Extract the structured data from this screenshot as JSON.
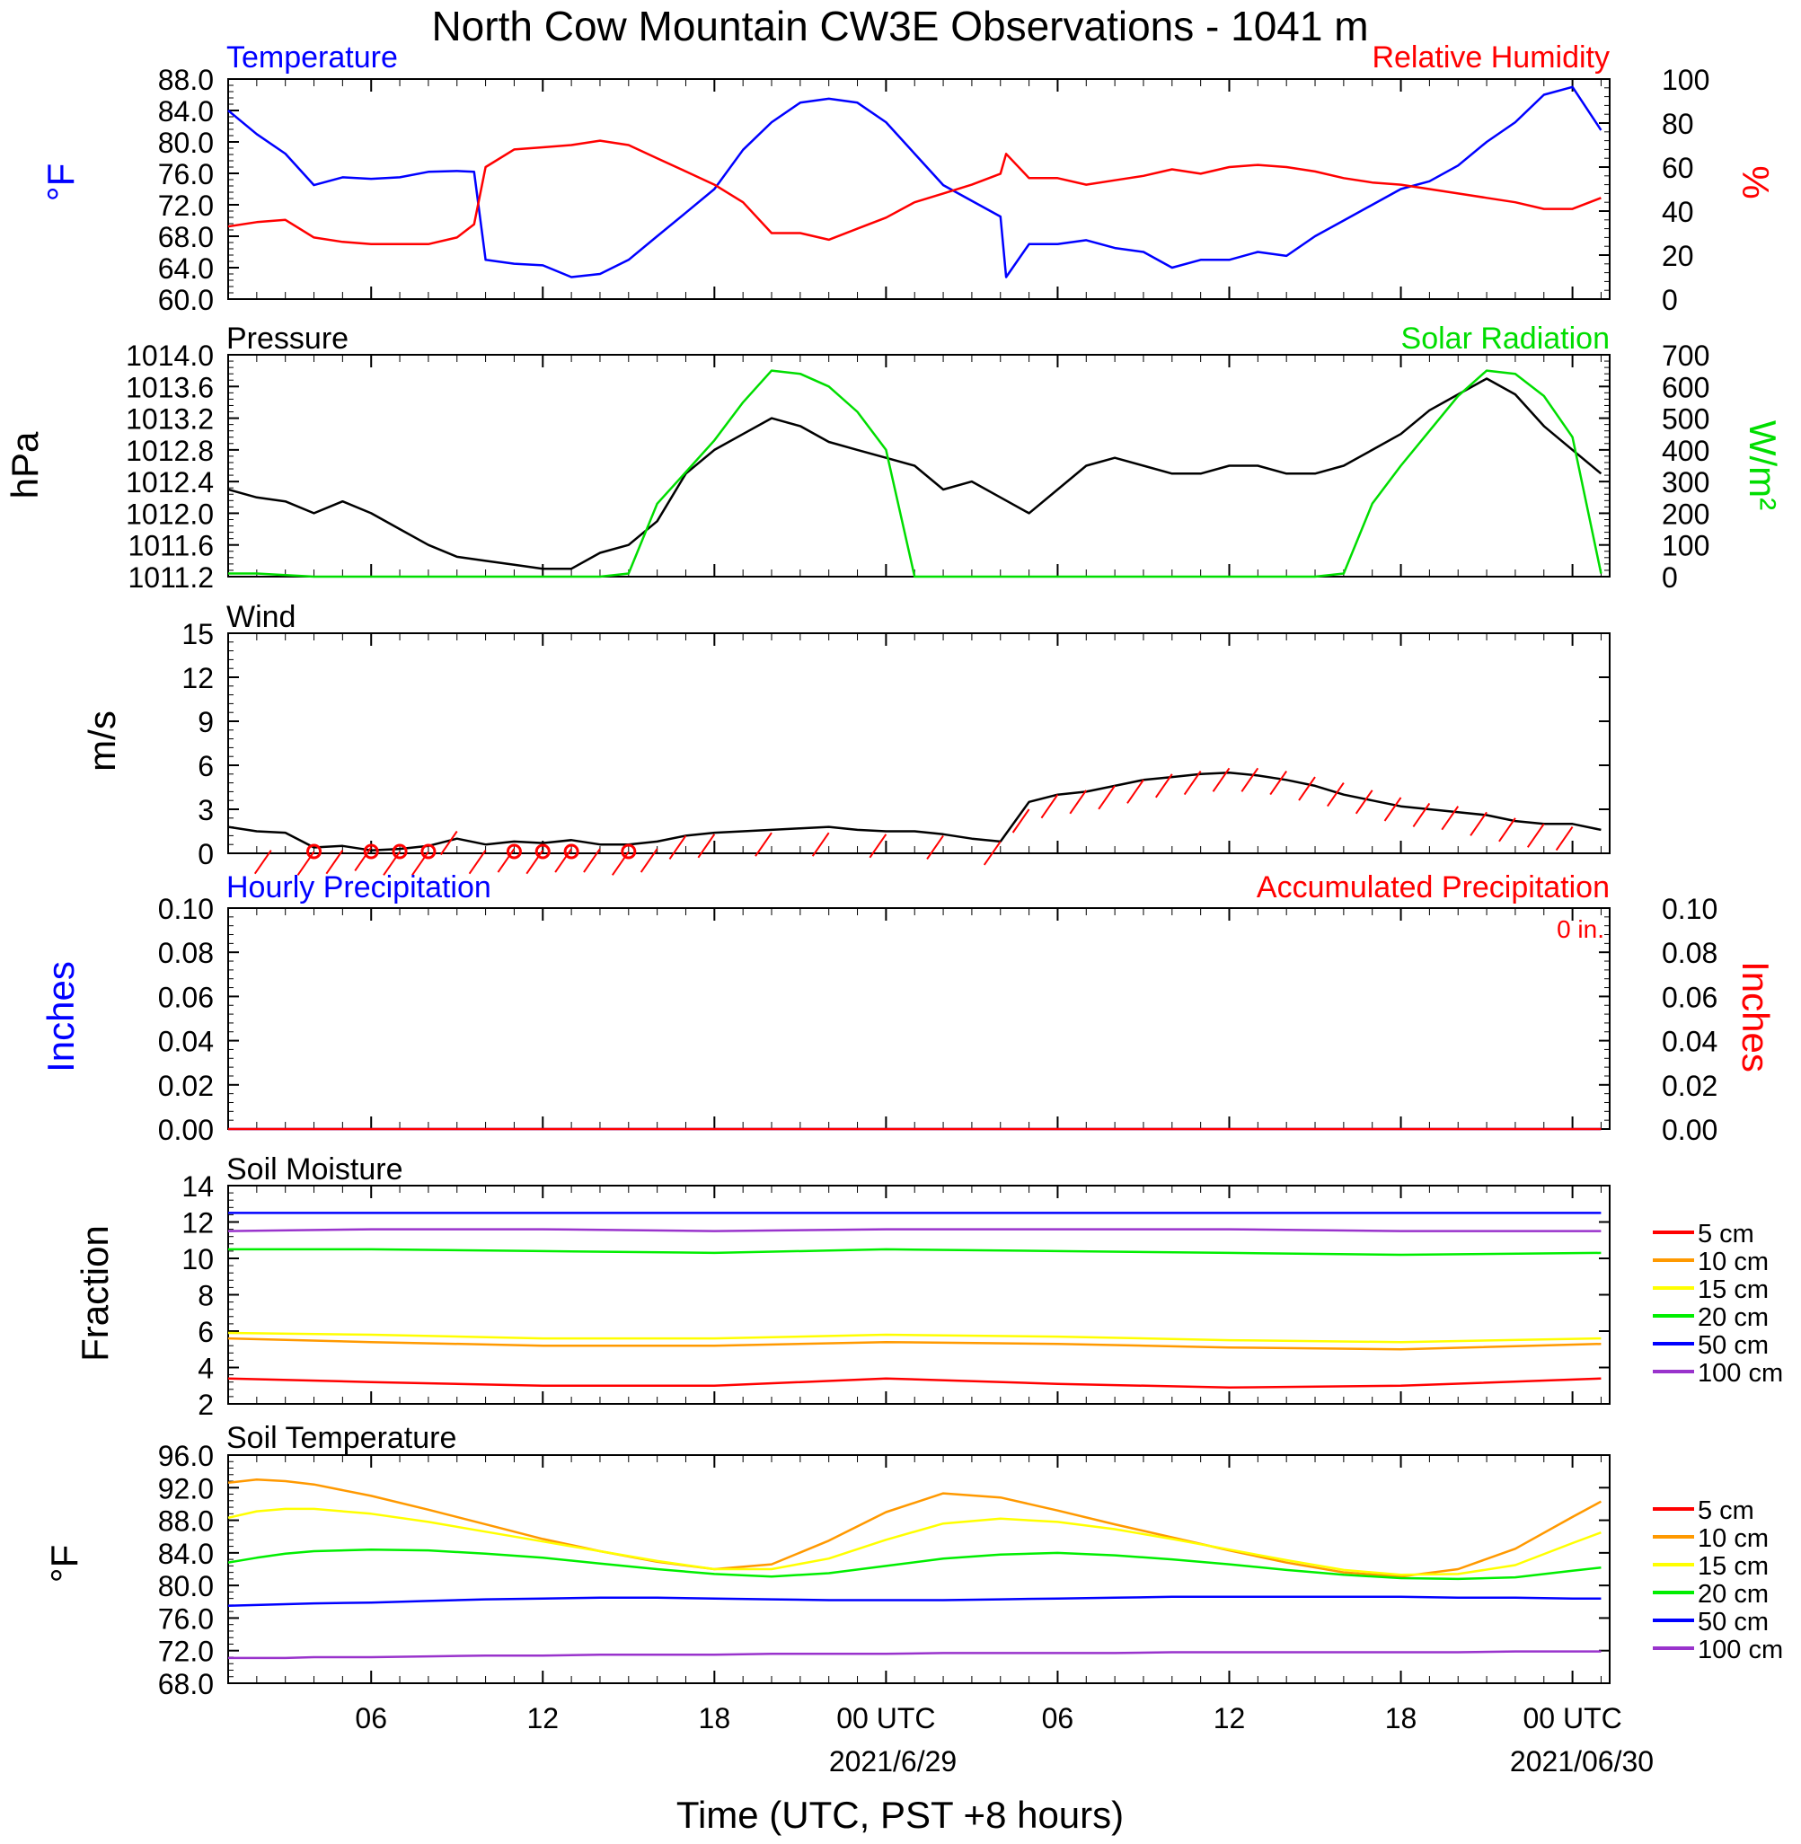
{
  "title": "North Cow Mountain CW3E Observations - 1041 m",
  "xlabel": "Time (UTC, PST +8 hours)",
  "x_ticks": [
    "06",
    "12",
    "18",
    "00 UTC",
    "06",
    "12",
    "18",
    "00 UTC"
  ],
  "x_dates": [
    "2021/6/29",
    "2021/06/30"
  ],
  "chart_data": [
    {
      "type": "line",
      "title_left": "Temperature",
      "title_right": "Relative Humidity",
      "ylabel_left": "°F",
      "ylabel_right": "%",
      "ylim_left": [
        60,
        88
      ],
      "ylim_right": [
        0,
        100
      ],
      "yticks_left": [
        "60.0",
        "64.0",
        "68.0",
        "72.0",
        "76.0",
        "80.0",
        "84.0",
        "88.0"
      ],
      "yticks_right": [
        "0",
        "20",
        "40",
        "60",
        "80",
        "100"
      ],
      "x_hours": [
        1,
        2,
        3,
        4,
        5,
        6,
        7,
        8,
        9,
        9.6,
        10,
        11,
        12,
        13,
        14,
        15,
        16,
        17,
        18,
        19,
        20,
        21,
        22,
        23,
        24,
        25,
        26,
        27,
        28,
        28.2,
        29,
        30,
        31,
        32,
        33,
        34,
        35,
        36,
        37,
        38,
        39,
        40,
        41,
        42,
        43,
        44,
        45,
        46,
        47,
        48,
        49
      ],
      "series": [
        {
          "name": "Temperature",
          "color": "#0000ff",
          "axis": "left",
          "values": [
            84,
            81,
            78.5,
            74.5,
            75.5,
            75.3,
            75.5,
            76.2,
            76.3,
            76.2,
            65,
            64.5,
            64.3,
            62.8,
            63.2,
            65,
            68,
            71,
            74,
            79,
            82.5,
            85,
            85.5,
            85,
            82.5,
            78.5,
            74.5,
            72.5,
            70.5,
            62.8,
            67,
            67,
            67.5,
            66.5,
            66,
            64,
            65,
            65,
            66,
            65.5,
            68,
            70,
            72,
            74,
            75,
            77,
            80,
            82.5,
            86,
            87,
            81.5
          ]
        },
        {
          "name": "Relative Humidity",
          "color": "#ff0000",
          "axis": "right",
          "values": [
            33,
            35,
            36,
            28,
            26,
            25,
            25,
            25,
            28,
            34,
            60,
            68,
            69,
            70,
            72,
            70,
            64,
            58,
            52,
            44,
            30,
            30,
            27,
            32,
            37,
            44,
            48,
            52,
            57,
            66,
            55,
            55,
            52,
            54,
            56,
            59,
            57,
            60,
            61,
            60,
            58,
            55,
            53,
            52,
            50,
            48,
            46,
            44,
            41,
            41,
            46
          ]
        }
      ]
    },
    {
      "type": "line",
      "title_left": "Pressure",
      "title_right": "Solar Radiation",
      "ylabel_left": "hPa",
      "ylabel_right": "W/m²",
      "ylim_left": [
        1011.2,
        1014.0
      ],
      "ylim_right": [
        0,
        700
      ],
      "yticks_left": [
        "1011.2",
        "1011.6",
        "1012.0",
        "1012.4",
        "1012.8",
        "1013.2",
        "1013.6",
        "1014.0"
      ],
      "yticks_right": [
        "0",
        "100",
        "200",
        "300",
        "400",
        "500",
        "600",
        "700"
      ],
      "x_hours": [
        1,
        2,
        3,
        4,
        5,
        6,
        7,
        8,
        9,
        10,
        11,
        12,
        13,
        14,
        15,
        16,
        17,
        18,
        19,
        20,
        21,
        22,
        23,
        24,
        25,
        26,
        27,
        28,
        29,
        30,
        31,
        32,
        33,
        34,
        35,
        36,
        37,
        38,
        39,
        40,
        41,
        42,
        43,
        44,
        45,
        46,
        47,
        48,
        49
      ],
      "series": [
        {
          "name": "Pressure",
          "color": "#000000",
          "axis": "left",
          "values": [
            1012.3,
            1012.2,
            1012.15,
            1012.0,
            1012.15,
            1012.0,
            1011.8,
            1011.6,
            1011.45,
            1011.4,
            1011.35,
            1011.3,
            1011.3,
            1011.5,
            1011.6,
            1011.9,
            1012.5,
            1012.8,
            1013.0,
            1013.2,
            1013.1,
            1012.9,
            1012.8,
            1012.7,
            1012.6,
            1012.3,
            1012.4,
            1012.2,
            1012.0,
            1012.3,
            1012.6,
            1012.7,
            1012.6,
            1012.5,
            1012.5,
            1012.6,
            1012.6,
            1012.5,
            1012.5,
            1012.6,
            1012.8,
            1013.0,
            1013.3,
            1013.5,
            1013.7,
            1013.5,
            1013.1,
            1012.8,
            1012.5
          ]
        },
        {
          "name": "Solar Radiation",
          "color": "#00dd00",
          "axis": "right",
          "values": [
            10,
            10,
            5,
            0,
            0,
            0,
            0,
            0,
            0,
            0,
            0,
            0,
            0,
            0,
            10,
            230,
            330,
            430,
            550,
            650,
            640,
            600,
            520,
            400,
            0,
            0,
            0,
            0,
            0,
            0,
            0,
            0,
            0,
            0,
            0,
            0,
            0,
            0,
            0,
            10,
            230,
            350,
            460,
            570,
            650,
            640,
            570,
            440,
            10
          ]
        }
      ]
    },
    {
      "type": "line",
      "title_left": "Wind",
      "ylabel_left": "m/s",
      "ylim_left": [
        0,
        15
      ],
      "yticks_left": [
        "0",
        "3",
        "6",
        "9",
        "12",
        "15"
      ],
      "x_hours": [
        1,
        2,
        3,
        4,
        5,
        6,
        7,
        8,
        9,
        10,
        11,
        12,
        13,
        14,
        15,
        16,
        17,
        18,
        19,
        20,
        21,
        22,
        23,
        24,
        25,
        26,
        27,
        28,
        29,
        30,
        31,
        32,
        33,
        34,
        35,
        36,
        37,
        38,
        39,
        40,
        41,
        42,
        43,
        44,
        45,
        46,
        47,
        48,
        49
      ],
      "series": [
        {
          "name": "Wind speed",
          "color": "#000000",
          "axis": "left",
          "values": [
            1.8,
            1.5,
            1.4,
            0.4,
            0.5,
            0.2,
            0.3,
            0.5,
            1,
            0.6,
            0.8,
            0.7,
            0.9,
            0.6,
            0.6,
            0.8,
            1.2,
            1.4,
            1.5,
            1.6,
            1.7,
            1.8,
            1.6,
            1.5,
            1.5,
            1.3,
            1.0,
            0.8,
            3.5,
            4.0,
            4.2,
            4.6,
            5.0,
            5.2,
            5.4,
            5.5,
            5.3,
            5.0,
            4.6,
            4.0,
            3.6,
            3.2,
            3.0,
            2.8,
            2.6,
            2.2,
            2.0,
            2.0,
            1.6
          ]
        },
        {
          "name": "Wind barbs",
          "color": "#ff0000",
          "axis": "left",
          "x_hours": [
            2.5,
            4,
            5,
            6,
            7,
            8,
            9,
            10,
            11,
            12,
            13,
            14,
            15,
            16,
            17,
            18,
            20,
            22,
            24,
            26,
            28,
            29,
            30,
            31,
            32,
            33,
            34,
            35,
            36,
            37,
            38,
            39,
            40,
            41,
            42,
            43,
            44,
            45,
            46,
            47,
            48
          ],
          "values": [
            0.2,
            0.1,
            0.2,
            0.4,
            0.1,
            0.1,
            1.5,
            0.2,
            0.3,
            0.2,
            0.3,
            0.3,
            0.1,
            0.3,
            1.2,
            1.3,
            1.4,
            1.4,
            1.3,
            1.2,
            0.8,
            3.0,
            4.0,
            4.3,
            4.6,
            5.0,
            5.4,
            5.6,
            5.8,
            5.8,
            5.6,
            5.2,
            4.8,
            4.3,
            3.8,
            3.4,
            3.2,
            2.8,
            2.4,
            2.0,
            1.8
          ],
          "calm_hours": [
            4,
            6,
            7,
            8,
            11,
            12,
            13,
            15
          ]
        }
      ]
    },
    {
      "type": "line",
      "title_left": "Hourly Precipitation",
      "title_right": "Accumulated Precipitation",
      "annotation": "0 in.",
      "ylabel_left": "Inches",
      "ylabel_right": "Inches",
      "ylim_left": [
        0,
        0.1
      ],
      "ylim_right": [
        0,
        0.1
      ],
      "yticks_left": [
        "0.00",
        "0.02",
        "0.04",
        "0.06",
        "0.08",
        "0.10"
      ],
      "yticks_right": [
        "0.00",
        "0.02",
        "0.04",
        "0.06",
        "0.08",
        "0.10"
      ],
      "x_hours": [
        1,
        49
      ],
      "series": [
        {
          "name": "Hourly Precipitation",
          "color": "#0000ff",
          "axis": "left",
          "values": [
            0,
            0
          ]
        },
        {
          "name": "Accumulated Precipitation",
          "color": "#ff0000",
          "axis": "right",
          "values": [
            0,
            0
          ]
        }
      ]
    },
    {
      "type": "line",
      "title_left": "Soil Moisture",
      "ylabel_left": "Fraction",
      "ylim_left": [
        2,
        14
      ],
      "yticks_left": [
        "2",
        "4",
        "6",
        "8",
        "10",
        "12",
        "14"
      ],
      "legend_position": "right",
      "x_hours": [
        1,
        6,
        12,
        18,
        24,
        30,
        36,
        42,
        49
      ],
      "series": [
        {
          "name": "5 cm",
          "color": "#ff0000",
          "values": [
            3.4,
            3.2,
            3.0,
            3.0,
            3.4,
            3.1,
            2.9,
            3.0,
            3.4
          ]
        },
        {
          "name": "10 cm",
          "color": "#ff9900",
          "values": [
            5.6,
            5.4,
            5.2,
            5.2,
            5.4,
            5.3,
            5.1,
            5.0,
            5.3
          ]
        },
        {
          "name": "15 cm",
          "color": "#ffff00",
          "values": [
            5.9,
            5.8,
            5.6,
            5.6,
            5.8,
            5.7,
            5.5,
            5.4,
            5.6
          ]
        },
        {
          "name": "20 cm",
          "color": "#00ee00",
          "values": [
            10.5,
            10.5,
            10.4,
            10.3,
            10.5,
            10.4,
            10.3,
            10.2,
            10.3
          ]
        },
        {
          "name": "50 cm",
          "color": "#0000ff",
          "values": [
            12.5,
            12.5,
            12.5,
            12.5,
            12.5,
            12.5,
            12.5,
            12.5,
            12.5
          ]
        },
        {
          "name": "100 cm",
          "color": "#9933cc",
          "values": [
            11.5,
            11.6,
            11.6,
            11.5,
            11.6,
            11.6,
            11.6,
            11.5,
            11.5
          ]
        }
      ]
    },
    {
      "type": "line",
      "title_left": "Soil Temperature",
      "ylabel_left": "°F",
      "ylim_left": [
        68,
        96
      ],
      "yticks_left": [
        "68.0",
        "72.0",
        "76.0",
        "80.0",
        "84.0",
        "88.0",
        "92.0",
        "96.0"
      ],
      "legend_position": "right",
      "x_hours": [
        1,
        2,
        3,
        4,
        6,
        8,
        10,
        12,
        14,
        16,
        18,
        20,
        22,
        24,
        26,
        28,
        30,
        32,
        34,
        36,
        38,
        40,
        42,
        44,
        46,
        48,
        49
      ],
      "series": [
        {
          "name": "5 cm",
          "color": "#ff0000",
          "values": []
        },
        {
          "name": "10 cm",
          "color": "#ff9900",
          "values": [
            92.6,
            93.0,
            92.8,
            92.4,
            91.0,
            89.3,
            87.5,
            85.7,
            84.2,
            82.9,
            82.0,
            82.6,
            85.5,
            89.0,
            91.3,
            90.8,
            89.2,
            87.5,
            85.9,
            84.3,
            82.8,
            81.6,
            81.1,
            82.0,
            84.5,
            88.4,
            90.3
          ]
        },
        {
          "name": "15 cm",
          "color": "#ffff00",
          "values": [
            88.3,
            89.1,
            89.4,
            89.4,
            88.8,
            87.8,
            86.6,
            85.4,
            84.2,
            83.0,
            82.0,
            82.0,
            83.3,
            85.6,
            87.6,
            88.2,
            87.8,
            86.9,
            85.7,
            84.4,
            83.1,
            81.9,
            81.3,
            81.4,
            82.5,
            85.2,
            86.5
          ]
        },
        {
          "name": "20 cm",
          "color": "#00ee00",
          "values": [
            82.8,
            83.4,
            83.9,
            84.2,
            84.4,
            84.3,
            83.9,
            83.4,
            82.7,
            82.0,
            81.4,
            81.1,
            81.5,
            82.4,
            83.3,
            83.8,
            84.0,
            83.7,
            83.2,
            82.6,
            81.9,
            81.3,
            80.9,
            80.8,
            81.0,
            81.8,
            82.2
          ]
        },
        {
          "name": "50 cm",
          "color": "#0000ff",
          "values": [
            77.5,
            77.6,
            77.7,
            77.8,
            77.9,
            78.1,
            78.3,
            78.4,
            78.5,
            78.5,
            78.4,
            78.3,
            78.2,
            78.2,
            78.2,
            78.3,
            78.4,
            78.5,
            78.6,
            78.6,
            78.6,
            78.6,
            78.6,
            78.5,
            78.5,
            78.4,
            78.4
          ]
        },
        {
          "name": "100 cm",
          "color": "#9933cc",
          "values": [
            71.1,
            71.1,
            71.1,
            71.2,
            71.2,
            71.3,
            71.4,
            71.4,
            71.5,
            71.5,
            71.5,
            71.6,
            71.6,
            71.6,
            71.7,
            71.7,
            71.7,
            71.7,
            71.8,
            71.8,
            71.8,
            71.8,
            71.8,
            71.8,
            71.9,
            71.9,
            71.9
          ]
        }
      ]
    }
  ]
}
